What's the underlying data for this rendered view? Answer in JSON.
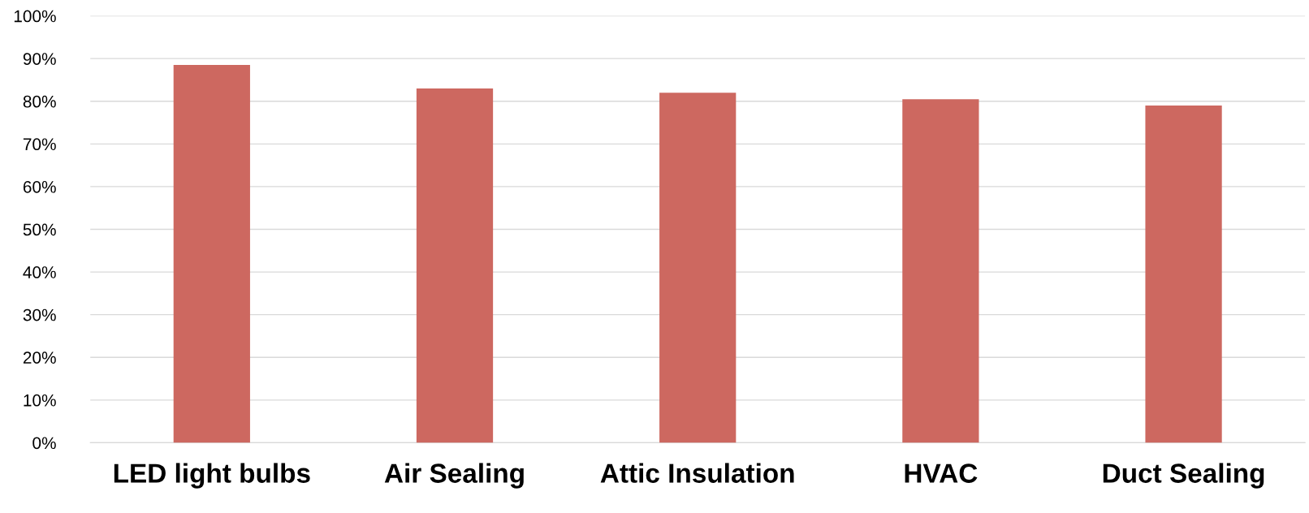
{
  "chart_data": {
    "type": "bar",
    "categories": [
      "LED light bulbs",
      "Air Sealing",
      "Attic Insulation",
      "HVAC",
      "Duct Sealing"
    ],
    "values": [
      88.5,
      83,
      82,
      80.5,
      79
    ],
    "color": "#cd6860",
    "ylim": [
      0,
      100
    ],
    "yticks": [
      {
        "value": 0,
        "label": "0%"
      },
      {
        "value": 10,
        "label": "10%"
      },
      {
        "value": 20,
        "label": "20%"
      },
      {
        "value": 30,
        "label": "30%"
      },
      {
        "value": 40,
        "label": "40%"
      },
      {
        "value": 50,
        "label": "50%"
      },
      {
        "value": 60,
        "label": "60%"
      },
      {
        "value": 70,
        "label": "70%"
      },
      {
        "value": 80,
        "label": "80%"
      },
      {
        "value": 90,
        "label": "90%"
      },
      {
        "value": 100,
        "label": "100%"
      }
    ],
    "grid": "y",
    "legend": false
  }
}
